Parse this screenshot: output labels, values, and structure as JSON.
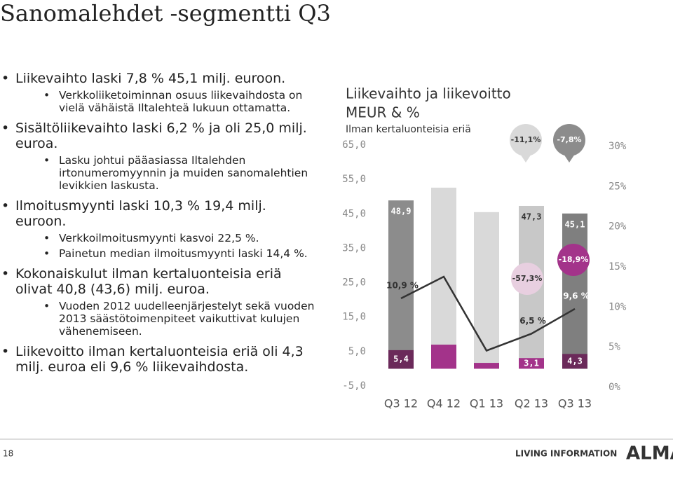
{
  "title": "Sanomalehdet -segmentti Q3",
  "bullets": [
    {
      "level": 1,
      "text": "Liikevaihto laski 7,8 % 45,1 milj. euroon."
    },
    {
      "level": 2,
      "text": "Verkkoliiketoiminnan osuus liikevaihdosta on vielä vähäistä Iltalehteä lukuun ottamatta."
    },
    {
      "level": 1,
      "text": "Sisältöliikevaihto laski 6,2 % ja oli 25,0 milj. euroa."
    },
    {
      "level": 2,
      "text": "Lasku johtui pääasiassa Iltalehden irtonumeromyynnin ja muiden sanomalehtien levikkien laskusta."
    },
    {
      "level": 1,
      "text": "Ilmoitusmyynti laski 10,3 % 19,4 milj. euroon."
    },
    {
      "level": 2,
      "text": "Verkkoilmoitusmyynti kasvoi 22,5 %."
    },
    {
      "level": 2,
      "text": "Painetun median ilmoitusmyynti laski 14,4 %."
    },
    {
      "level": 1,
      "text": "Kokonaiskulut ilman kertaluonteisia eriä olivat 40,8 (43,6) milj. euroa."
    },
    {
      "level": 2,
      "text": "Vuoden 2012 uudelleenjärjestelyt sekä vuoden 2013 säästötoimenpiteet vaikuttivat kulujen vähenemiseen."
    },
    {
      "level": 1,
      "text": "Liikevoitto ilman kertaluonteisia eriä oli 4,3 milj. euroa eli 9,6 % liikevaihdosta."
    }
  ],
  "chart_data": {
    "type": "bar",
    "title": "Liikevaihto ja liikevoitto",
    "unit": "MEUR & %",
    "subtitle": "Ilman kertaluonteisia eriä",
    "categories": [
      "Q3 12",
      "Q4 12",
      "Q1 13",
      "Q2 13",
      "Q3 13"
    ],
    "series": [
      {
        "type": "bar",
        "colors": [
          "#8c8c8c",
          "#d9d9d9",
          "#d9d9d9",
          "#c8c8c8",
          "#7f7f7f"
        ],
        "values": [
          48.9,
          52.6,
          45.5,
          47.3,
          45.1
        ],
        "value_labels": [
          "48,9",
          null,
          null,
          "47,3",
          "45,1"
        ]
      },
      {
        "type": "bar",
        "colors": [
          "#6b2a5a",
          "#a3338a",
          "#a3338a",
          "#a3338a",
          "#6b2a5a"
        ],
        "values": [
          5.4,
          7.0,
          1.7,
          3.1,
          4.3
        ],
        "value_labels": [
          "5,4",
          null,
          null,
          "3,1",
          "4,3"
        ]
      },
      {
        "type": "line",
        "axis": "y2",
        "color": "#333333",
        "values": [
          10.9,
          13.6,
          4.4,
          6.5,
          9.6
        ],
        "value_labels": [
          "10,9 %",
          null,
          null,
          "6,5 %",
          "9,6 %"
        ]
      }
    ],
    "ylim": [
      -5,
      65
    ],
    "yticks": [
      {
        "value": -5,
        "label": "-5,0"
      },
      {
        "value": 5,
        "label": "5,0"
      },
      {
        "value": 15,
        "label": "15,0"
      },
      {
        "value": 25,
        "label": "25,0"
      },
      {
        "value": 35,
        "label": "35,0"
      },
      {
        "value": 45,
        "label": "45,0"
      },
      {
        "value": 55,
        "label": "55,0"
      },
      {
        "value": 65,
        "label": "65,0"
      }
    ],
    "y2lim": [
      0,
      30
    ],
    "y2ticks": [
      {
        "value": 0,
        "label": "0%"
      },
      {
        "value": 5,
        "label": "5%"
      },
      {
        "value": 10,
        "label": "10%"
      },
      {
        "value": 15,
        "label": "15%"
      },
      {
        "value": 20,
        "label": "20%"
      },
      {
        "value": 25,
        "label": "25%"
      },
      {
        "value": 30,
        "label": "30%"
      }
    ],
    "annotations": [
      {
        "text": "-11,1%"
      },
      {
        "text": "-7,8%"
      },
      {
        "text": "-57,3%"
      },
      {
        "text": "-18,9%"
      }
    ],
    "grid": false
  },
  "footer": {
    "page": "18",
    "tagline": "LIVING INFORMATION",
    "logo": "ALMA"
  }
}
